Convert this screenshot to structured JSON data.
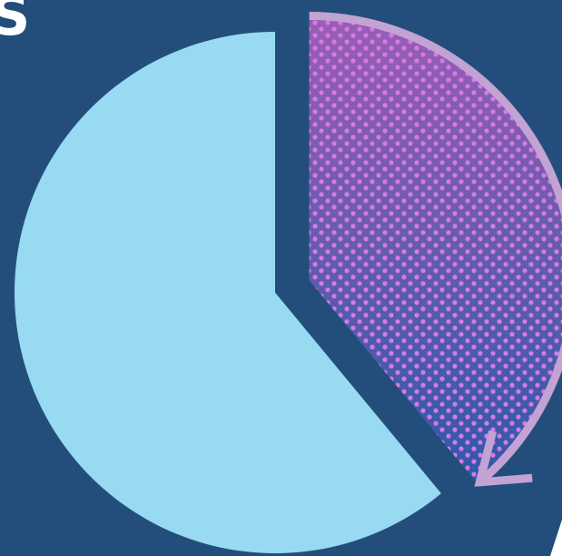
{
  "colors": {
    "background": "#234e7b",
    "large_slice": "#97daf2",
    "highlight_gradient_top": "#9a5db4",
    "highlight_gradient_bottom": "#2f5aa8",
    "highlight_dots_top": "#d77ae6",
    "highlight_dots_bottom": "#4a7fe8",
    "arrow": "#c3a2d4"
  },
  "edge_text": {
    "top_left": "S"
  },
  "chart_data": {
    "type": "pie",
    "title": "",
    "slices": [
      {
        "label": "",
        "value": 61,
        "style": "solid"
      },
      {
        "label": "",
        "value": 39,
        "style": "dotted-gradient",
        "exploded": true
      }
    ],
    "annotation": {
      "type": "curved-arrow",
      "follows_slice": 1,
      "direction": "clockwise"
    }
  }
}
